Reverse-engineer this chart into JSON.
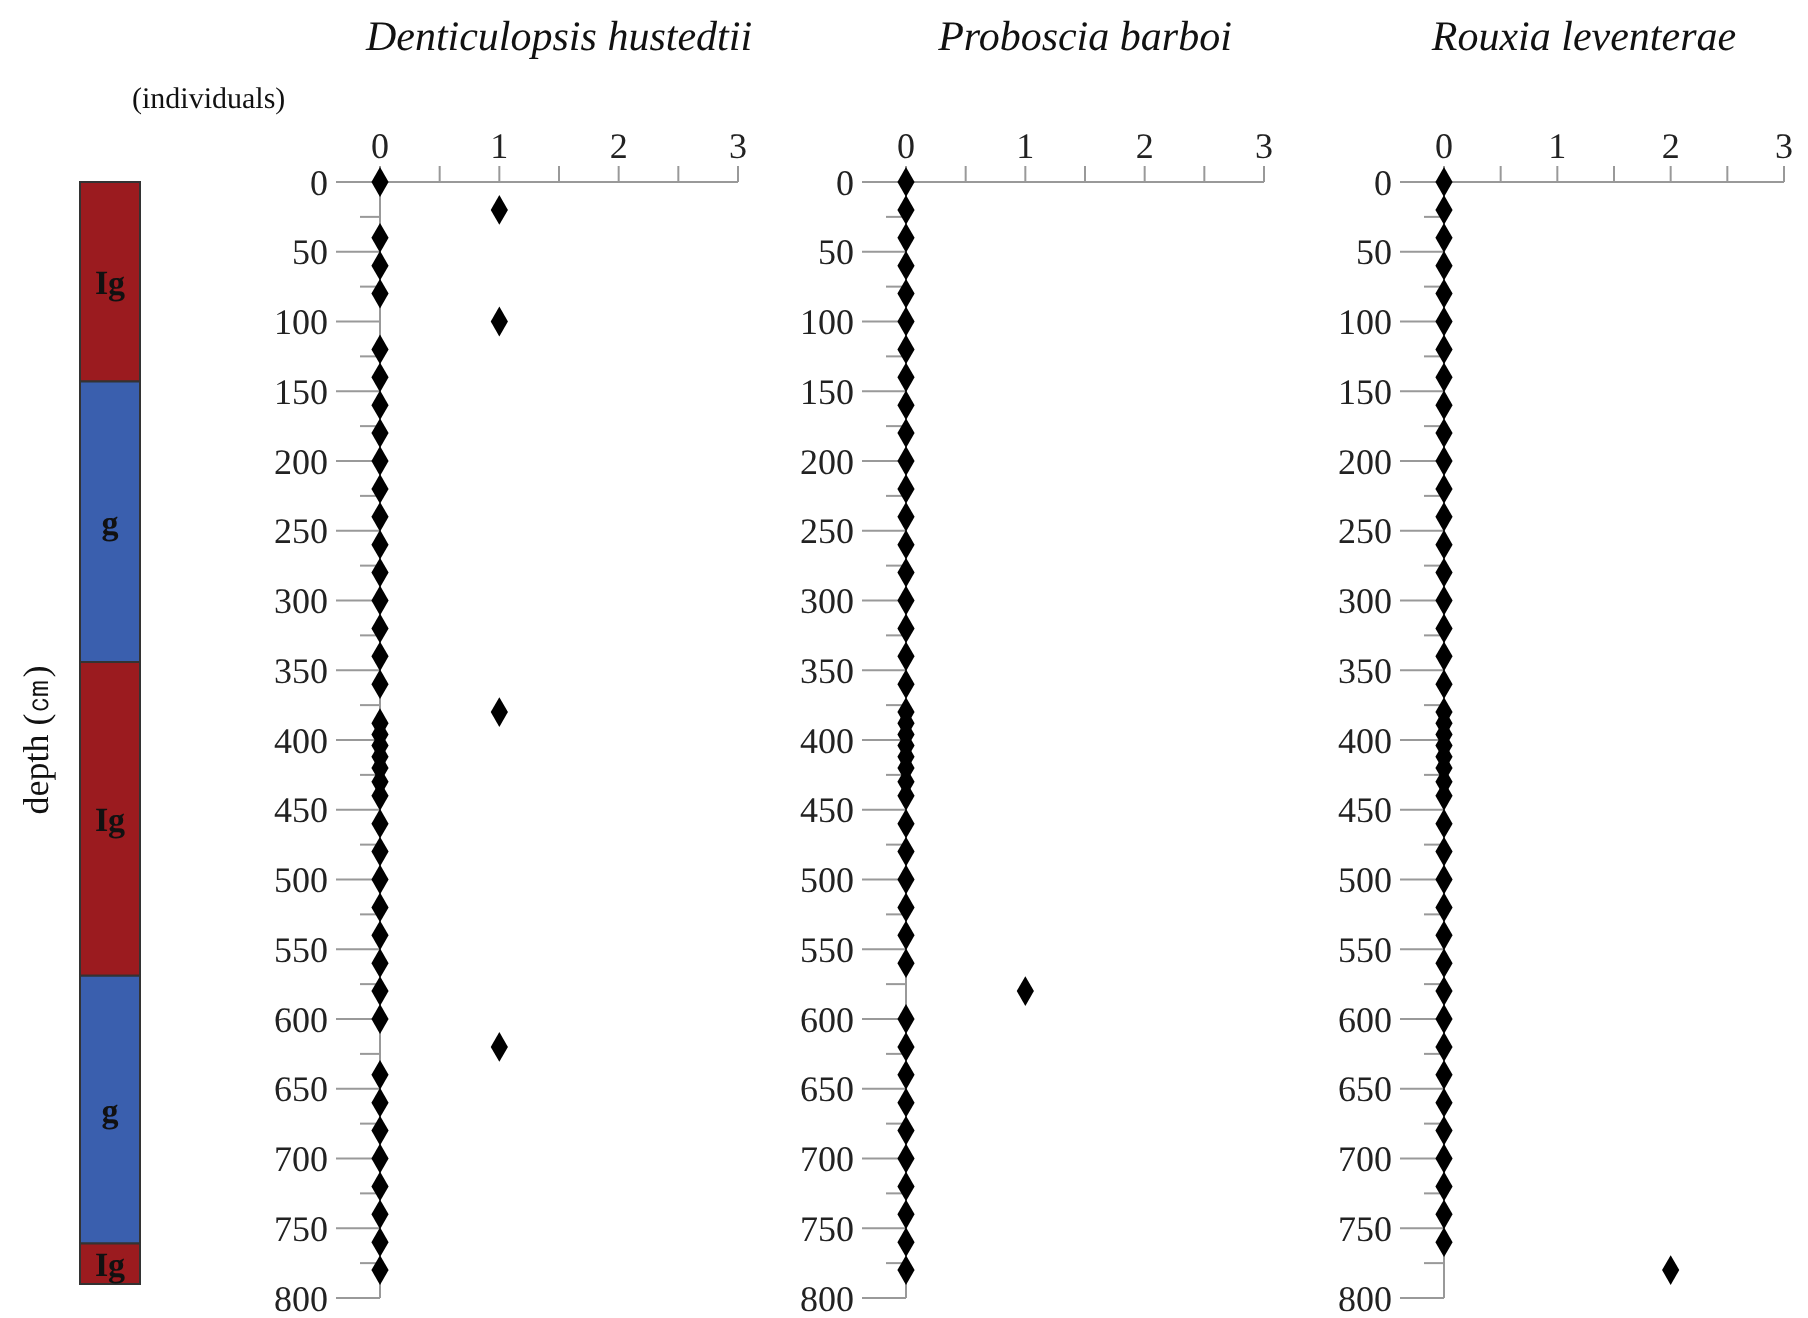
{
  "chart_data": [
    {
      "type": "bar",
      "stacked": true,
      "ylabel": "depth (㎝)",
      "categories": [
        null
      ],
      "ylim": [
        800,
        0
      ],
      "tick_labels": false,
      "series": [
        {
          "name": "Ig",
          "color": "#9b1b1f",
          "values": [
            143
          ]
        },
        {
          "name": "g",
          "color": "#3a5fae",
          "values": [
            201
          ]
        },
        {
          "name": "Ig",
          "color": "#9b1b1f",
          "values": [
            225
          ]
        },
        {
          "name": "g",
          "color": "#3a5fae",
          "values": [
            192
          ]
        },
        {
          "name": "Ig",
          "color": "#9b1b1f",
          "values": [
            29
          ]
        }
      ]
    },
    {
      "type": "scatter",
      "title": "Denticulopsis hustedtii",
      "xlabel": "(individuals)",
      "marker": "diamond",
      "xlim": [
        0,
        3
      ],
      "xticks": [
        0,
        {
          "value": 0.5,
          "label": null
        },
        1,
        {
          "value": 1.5,
          "label": null
        },
        2,
        {
          "value": 2.5,
          "label": null
        },
        3
      ],
      "ylim": [
        800,
        0
      ],
      "yticks": [
        0,
        {
          "value": 25,
          "label": null
        },
        50,
        {
          "value": 75,
          "label": null
        },
        100,
        {
          "value": 125,
          "label": null
        },
        150,
        {
          "value": 175,
          "label": null
        },
        200,
        {
          "value": 225,
          "label": null
        },
        250,
        {
          "value": 275,
          "label": null
        },
        300,
        {
          "value": 325,
          "label": null
        },
        350,
        {
          "value": 375,
          "label": null
        },
        400,
        {
          "value": 425,
          "label": null
        },
        450,
        {
          "value": 475,
          "label": null
        },
        500,
        {
          "value": 525,
          "label": null
        },
        550,
        {
          "value": 575,
          "label": null
        },
        600,
        {
          "value": 625,
          "label": null
        },
        650,
        {
          "value": 675,
          "label": null
        },
        700,
        {
          "value": 725,
          "label": null
        },
        750,
        {
          "value": 775,
          "label": null
        },
        800
      ],
      "series": [
        {
          "color": "#000000",
          "x": [
            0,
            1,
            0,
            0,
            0,
            1,
            0,
            0,
            0,
            0,
            0,
            0,
            0,
            0,
            0,
            0,
            0,
            0,
            0,
            1,
            0,
            0,
            0,
            0,
            0,
            0,
            0,
            0,
            0,
            0,
            0,
            0,
            0,
            0,
            0,
            1,
            0,
            0,
            0,
            0,
            0,
            0,
            0,
            0
          ],
          "values": [
            0,
            20,
            40,
            60,
            80,
            100,
            120,
            140,
            160,
            180,
            200,
            220,
            240,
            260,
            280,
            300,
            320,
            340,
            360,
            380,
            388,
            396,
            404,
            412,
            420,
            430,
            440,
            460,
            480,
            500,
            520,
            540,
            560,
            580,
            600,
            620,
            640,
            660,
            680,
            700,
            720,
            740,
            760,
            780
          ]
        }
      ]
    },
    {
      "type": "scatter",
      "title": "Proboscia barboi",
      "marker": "diamond",
      "xlim": [
        0,
        3
      ],
      "xticks": [
        0,
        {
          "value": 0.5,
          "label": null
        },
        1,
        {
          "value": 1.5,
          "label": null
        },
        2,
        {
          "value": 2.5,
          "label": null
        },
        3
      ],
      "ylim": [
        800,
        0
      ],
      "yticks": [
        0,
        {
          "value": 25,
          "label": null
        },
        50,
        {
          "value": 75,
          "label": null
        },
        100,
        {
          "value": 125,
          "label": null
        },
        150,
        {
          "value": 175,
          "label": null
        },
        200,
        {
          "value": 225,
          "label": null
        },
        250,
        {
          "value": 275,
          "label": null
        },
        300,
        {
          "value": 325,
          "label": null
        },
        350,
        {
          "value": 375,
          "label": null
        },
        400,
        {
          "value": 425,
          "label": null
        },
        450,
        {
          "value": 475,
          "label": null
        },
        500,
        {
          "value": 525,
          "label": null
        },
        550,
        {
          "value": 575,
          "label": null
        },
        600,
        {
          "value": 625,
          "label": null
        },
        650,
        {
          "value": 675,
          "label": null
        },
        700,
        {
          "value": 725,
          "label": null
        },
        750,
        {
          "value": 775,
          "label": null
        },
        800
      ],
      "series": [
        {
          "color": "#000000",
          "x": [
            0,
            0,
            0,
            0,
            0,
            0,
            0,
            0,
            0,
            0,
            0,
            0,
            0,
            0,
            0,
            0,
            0,
            0,
            0,
            0,
            0,
            0,
            0,
            0,
            0,
            0,
            0,
            0,
            0,
            0,
            0,
            0,
            0,
            1,
            0,
            0,
            0,
            0,
            0,
            0,
            0,
            0,
            0,
            0
          ],
          "values": [
            0,
            20,
            40,
            60,
            80,
            100,
            120,
            140,
            160,
            180,
            200,
            220,
            240,
            260,
            280,
            300,
            320,
            340,
            360,
            380,
            388,
            396,
            404,
            412,
            420,
            430,
            440,
            460,
            480,
            500,
            520,
            540,
            560,
            580,
            600,
            620,
            640,
            660,
            680,
            700,
            720,
            740,
            760,
            780
          ]
        }
      ]
    },
    {
      "type": "scatter",
      "title": "Rouxia leventerae",
      "marker": "diamond",
      "xlim": [
        0,
        3
      ],
      "xticks": [
        0,
        {
          "value": 0.5,
          "label": null
        },
        1,
        {
          "value": 1.5,
          "label": null
        },
        2,
        {
          "value": 2.5,
          "label": null
        },
        3
      ],
      "ylim": [
        800,
        0
      ],
      "yticks": [
        0,
        {
          "value": 25,
          "label": null
        },
        50,
        {
          "value": 75,
          "label": null
        },
        100,
        {
          "value": 125,
          "label": null
        },
        150,
        {
          "value": 175,
          "label": null
        },
        200,
        {
          "value": 225,
          "label": null
        },
        250,
        {
          "value": 275,
          "label": null
        },
        300,
        {
          "value": 325,
          "label": null
        },
        350,
        {
          "value": 375,
          "label": null
        },
        400,
        {
          "value": 425,
          "label": null
        },
        450,
        {
          "value": 475,
          "label": null
        },
        500,
        {
          "value": 525,
          "label": null
        },
        550,
        {
          "value": 575,
          "label": null
        },
        600,
        {
          "value": 625,
          "label": null
        },
        650,
        {
          "value": 675,
          "label": null
        },
        700,
        {
          "value": 725,
          "label": null
        },
        750,
        {
          "value": 775,
          "label": null
        },
        800
      ],
      "series": [
        {
          "color": "#000000",
          "x": [
            0,
            0,
            0,
            0,
            0,
            0,
            0,
            0,
            0,
            0,
            0,
            0,
            0,
            0,
            0,
            0,
            0,
            0,
            0,
            0,
            0,
            0,
            0,
            0,
            0,
            0,
            0,
            0,
            0,
            0,
            0,
            0,
            0,
            0,
            0,
            0,
            0,
            0,
            0,
            0,
            0,
            0,
            0,
            2
          ],
          "values": [
            0,
            20,
            40,
            60,
            80,
            100,
            120,
            140,
            160,
            180,
            200,
            220,
            240,
            260,
            280,
            300,
            320,
            340,
            360,
            380,
            388,
            396,
            404,
            412,
            420,
            430,
            440,
            460,
            480,
            500,
            520,
            540,
            560,
            580,
            600,
            620,
            640,
            660,
            680,
            700,
            720,
            740,
            760,
            780
          ]
        }
      ]
    }
  ]
}
